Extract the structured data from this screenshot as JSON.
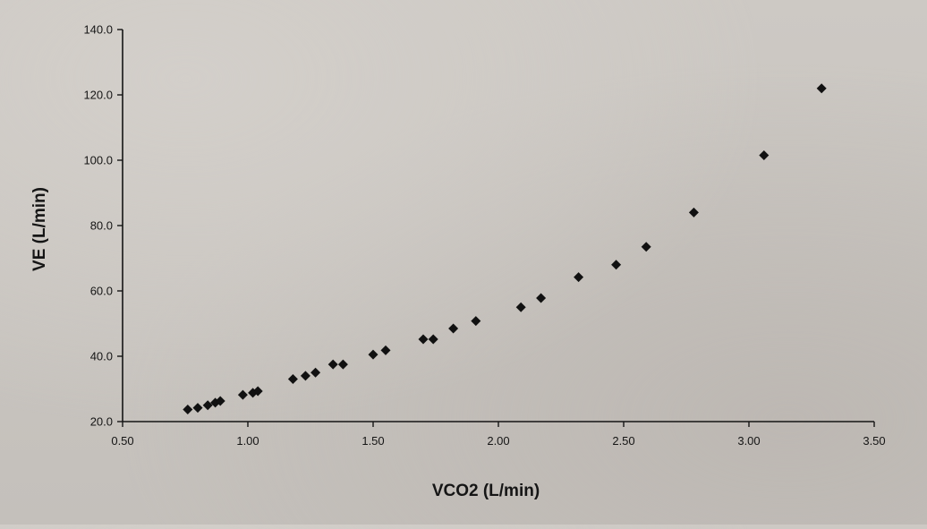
{
  "chart_data": {
    "type": "scatter",
    "title": "",
    "xlabel": "VCO2 (L/min)",
    "ylabel": "VE (L/min)",
    "xlim": [
      0.5,
      3.5
    ],
    "ylim": [
      20.0,
      140.0
    ],
    "x_ticks": [
      "0.50",
      "1.00",
      "1.50",
      "2.00",
      "2.50",
      "3.00",
      "3.50"
    ],
    "y_ticks": [
      "20.0",
      "40.0",
      "60.0",
      "80.0",
      "100.0",
      "120.0",
      "140.0"
    ],
    "grid": false,
    "legend": "none",
    "marker": "diamond",
    "marker_color": "#111111",
    "points": [
      {
        "x": 0.76,
        "y": 23.7
      },
      {
        "x": 0.8,
        "y": 24.2
      },
      {
        "x": 0.84,
        "y": 25.0
      },
      {
        "x": 0.87,
        "y": 25.8
      },
      {
        "x": 0.89,
        "y": 26.3
      },
      {
        "x": 0.98,
        "y": 28.2
      },
      {
        "x": 1.02,
        "y": 28.8
      },
      {
        "x": 1.04,
        "y": 29.3
      },
      {
        "x": 1.18,
        "y": 33.0
      },
      {
        "x": 1.23,
        "y": 34.0
      },
      {
        "x": 1.27,
        "y": 35.0
      },
      {
        "x": 1.34,
        "y": 37.5
      },
      {
        "x": 1.38,
        "y": 37.5
      },
      {
        "x": 1.5,
        "y": 40.5
      },
      {
        "x": 1.55,
        "y": 41.8
      },
      {
        "x": 1.7,
        "y": 45.2
      },
      {
        "x": 1.74,
        "y": 45.2
      },
      {
        "x": 1.82,
        "y": 48.5
      },
      {
        "x": 1.91,
        "y": 50.8
      },
      {
        "x": 2.09,
        "y": 55.0
      },
      {
        "x": 2.17,
        "y": 57.8
      },
      {
        "x": 2.32,
        "y": 64.2
      },
      {
        "x": 2.47,
        "y": 68.0
      },
      {
        "x": 2.59,
        "y": 73.5
      },
      {
        "x": 2.78,
        "y": 84.0
      },
      {
        "x": 3.06,
        "y": 101.5
      },
      {
        "x": 3.29,
        "y": 122.0
      }
    ]
  }
}
